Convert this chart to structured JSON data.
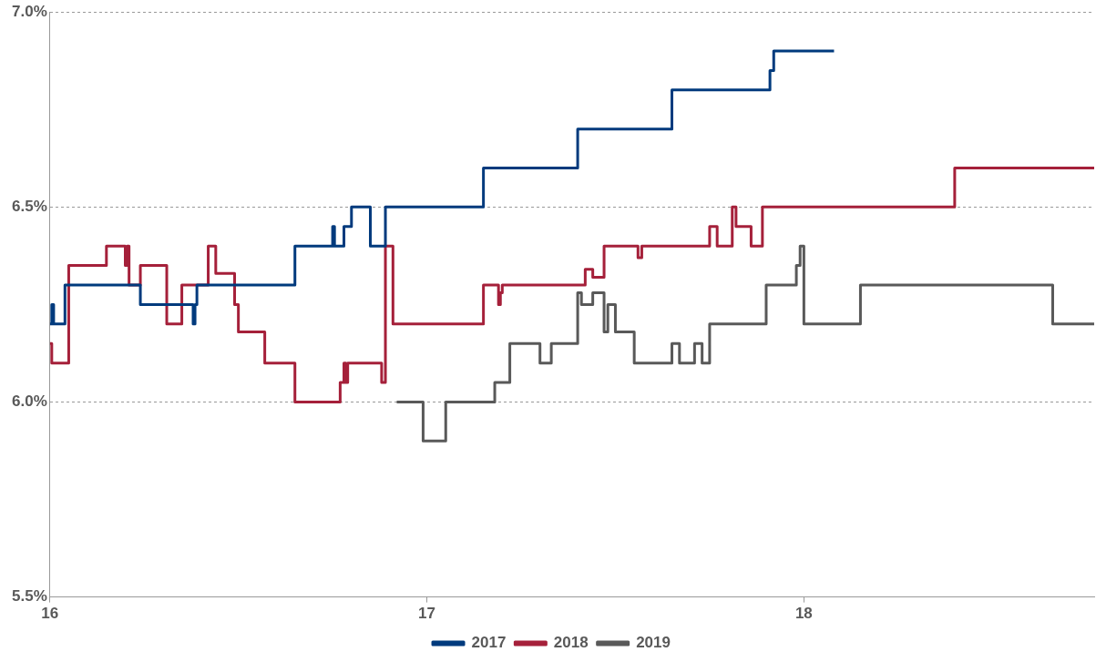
{
  "chart_data": {
    "type": "step",
    "xlim": [
      16,
      18.77
    ],
    "xticks": [
      16,
      17,
      18
    ],
    "ylim": [
      5.5,
      7.0
    ],
    "yticks": [
      {
        "value": 5.5,
        "label": "5.5%"
      },
      {
        "value": 6.0,
        "label": "6.0%"
      },
      {
        "value": 6.5,
        "label": "6.5%"
      },
      {
        "value": 7.0,
        "label": "7.0%"
      }
    ],
    "grid": "y",
    "legend": "bottom",
    "line_style": "solid",
    "marker": "none",
    "series": [
      {
        "name": "2017",
        "color": "#003a7d",
        "x": [
          16.0,
          16.005,
          16.01,
          16.04,
          16.24,
          16.37,
          16.38,
          16.385,
          16.39,
          16.65,
          16.75,
          16.755,
          16.78,
          16.8,
          16.85,
          16.89,
          17.15,
          17.4,
          17.65,
          17.91,
          17.92,
          18.08
        ],
        "values": [
          6.2,
          6.25,
          6.2,
          6.3,
          6.25,
          6.25,
          6.2,
          6.25,
          6.3,
          6.4,
          6.45,
          6.4,
          6.45,
          6.5,
          6.4,
          6.5,
          6.6,
          6.7,
          6.8,
          6.85,
          6.9,
          6.9
        ]
      },
      {
        "name": "2018",
        "color": "#a5203a",
        "x": [
          16.0,
          16.005,
          16.05,
          16.15,
          16.2,
          16.205,
          16.21,
          16.24,
          16.31,
          16.35,
          16.42,
          16.44,
          16.49,
          16.5,
          16.57,
          16.65,
          16.77,
          16.78,
          16.785,
          16.79,
          16.88,
          16.89,
          16.91,
          17.15,
          17.19,
          17.195,
          17.2,
          17.42,
          17.44,
          17.47,
          17.56,
          17.57,
          17.75,
          17.77,
          17.81,
          17.82,
          17.86,
          17.89,
          18.4,
          18.77
        ],
        "values": [
          6.15,
          6.1,
          6.35,
          6.4,
          6.35,
          6.4,
          6.3,
          6.35,
          6.2,
          6.3,
          6.4,
          6.33,
          6.25,
          6.18,
          6.1,
          6.0,
          6.05,
          6.1,
          6.05,
          6.1,
          6.05,
          6.4,
          6.2,
          6.3,
          6.25,
          6.28,
          6.3,
          6.34,
          6.32,
          6.4,
          6.37,
          6.4,
          6.45,
          6.4,
          6.5,
          6.45,
          6.4,
          6.5,
          6.6,
          6.6
        ]
      },
      {
        "name": "2019",
        "color": "#595959",
        "x": [
          16.92,
          16.99,
          17.05,
          17.18,
          17.22,
          17.3,
          17.33,
          17.4,
          17.41,
          17.44,
          17.47,
          17.48,
          17.5,
          17.55,
          17.65,
          17.67,
          17.71,
          17.73,
          17.75,
          17.9,
          17.98,
          17.99,
          18.0,
          18.15,
          18.66,
          18.77
        ],
        "values": [
          6.0,
          5.9,
          6.0,
          6.05,
          6.15,
          6.1,
          6.15,
          6.28,
          6.25,
          6.28,
          6.18,
          6.25,
          6.18,
          6.1,
          6.15,
          6.1,
          6.15,
          6.1,
          6.2,
          6.3,
          6.35,
          6.4,
          6.2,
          6.3,
          6.2,
          6.2
        ]
      }
    ]
  }
}
